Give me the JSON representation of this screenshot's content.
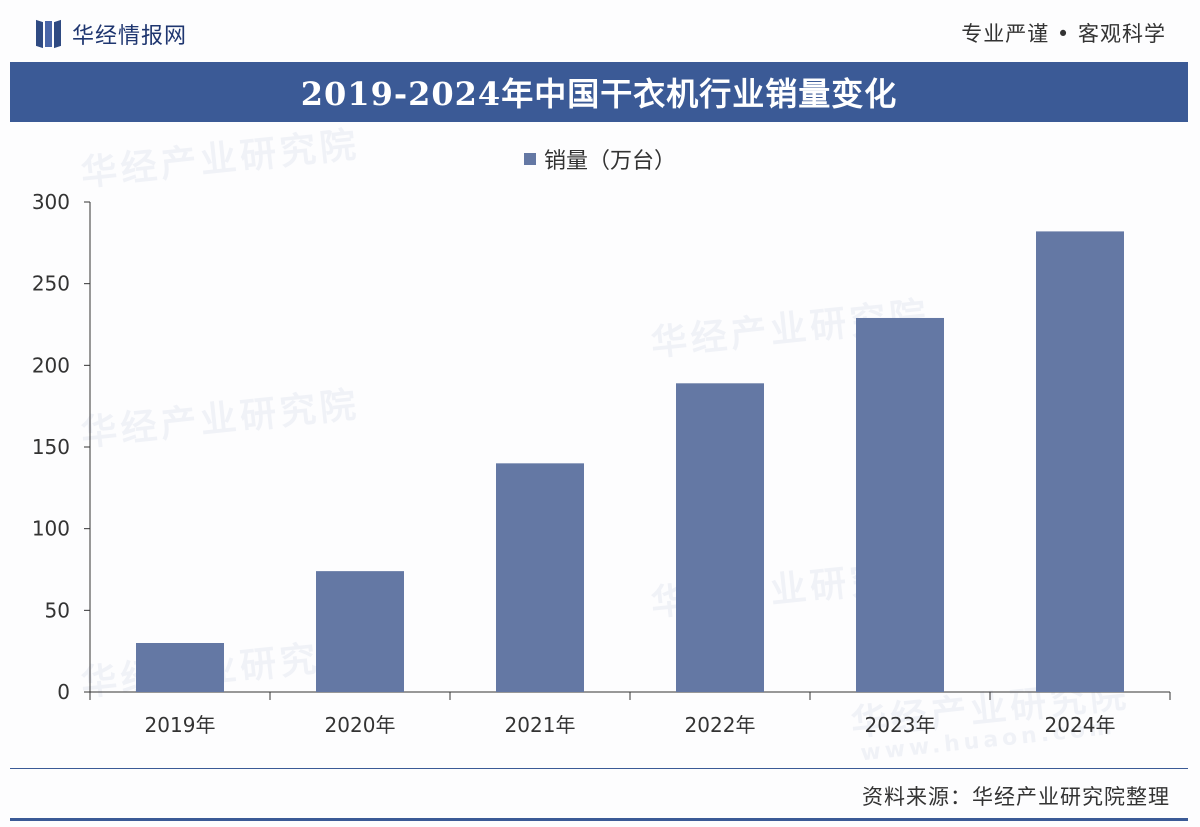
{
  "header": {
    "logo_text": "华经情报网",
    "logo_icon": "logo-mark-icon",
    "slogan": "专业严谨 • 客观科学"
  },
  "title": "2019-2024年中国干衣机行业销量变化",
  "footer": {
    "source": "资料来源：华经产业研究院整理"
  },
  "watermark": {
    "text": "华经产业研究院",
    "url_text": "www.huaon.com"
  },
  "colors": {
    "bar": "#6478a4",
    "band": "#3b5a96",
    "axis": "#333333"
  },
  "chart_data": {
    "type": "bar",
    "categories": [
      "2019年",
      "2020年",
      "2021年",
      "2022年",
      "2023年",
      "2024年"
    ],
    "series": [
      {
        "name": "销量（万台）",
        "values": [
          30,
          74,
          140,
          189,
          229,
          282
        ]
      }
    ],
    "legend": "top-center",
    "ylim": [
      0,
      300
    ],
    "yticks": [
      0,
      50,
      100,
      150,
      200,
      250,
      300
    ],
    "grid": false
  }
}
